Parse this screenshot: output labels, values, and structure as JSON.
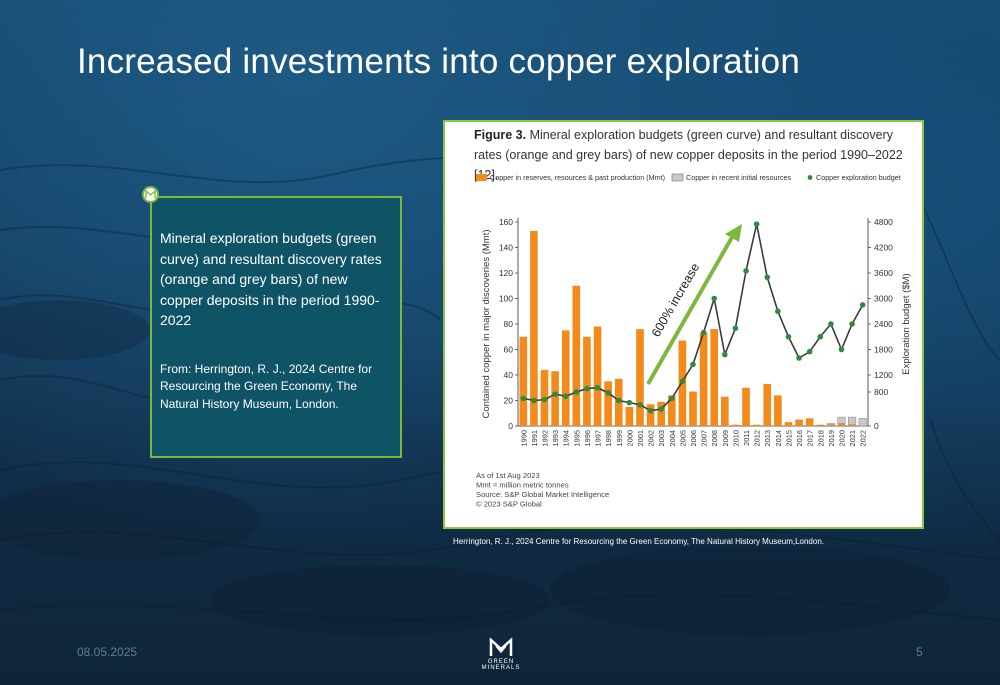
{
  "slide": {
    "title": "Increased investments into copper exploration",
    "date": "08.05.2025",
    "page_number": "5"
  },
  "info_box": {
    "description": "Mineral exploration budgets (green curve) and resultant discovery rates (orange and grey bars) of new copper deposits in the period 1990-2022",
    "source": "From: Herrington, R. J., 2024 Centre for Resourcing the Green Economy, The Natural History Museum, London."
  },
  "figure": {
    "label": "Figure 3.",
    "title_text": "Mineral exploration budgets (green curve) and resultant discovery rates (orange and grey bars) of new copper deposits in the period 1990–2022 [12].",
    "caption": "Herrington, R. J., 2024 Centre for Resourcing the Green Economy, The Natural History Museum,London.",
    "notes": [
      "As of 1st Aug 2023",
      "Mmt = million metric tonnes",
      "Source: S&P Global Market Intelligence",
      "© 2023 S&P Global"
    ]
  },
  "logo": {
    "text": "GREEN MINERALS"
  },
  "colors": {
    "accent_green": "#7bb93c",
    "orange_bar": "#f28a1c",
    "grey_bar": "#c8c8c8",
    "budget_line": "#3b3b3b",
    "budget_marker": "#2e8b3e",
    "info_bg": "#0e5366"
  },
  "chart_data": {
    "type": "bar",
    "categories": [
      "1990",
      "1991",
      "1992",
      "1993",
      "1994",
      "1995",
      "1996",
      "1997",
      "1998",
      "1999",
      "2000",
      "2001",
      "2002",
      "2003",
      "2004",
      "2005",
      "2006",
      "2007",
      "2008",
      "2009",
      "2010",
      "2011",
      "2012",
      "2013",
      "2014",
      "2015",
      "2016",
      "2017",
      "2018",
      "2019",
      "2020",
      "2021",
      "2022"
    ],
    "series": [
      {
        "name": "Copper in reserves, resources & past production (Mmt)",
        "values": [
          70,
          153,
          44,
          43,
          75,
          110,
          70,
          78,
          35,
          37,
          15,
          76,
          17,
          19,
          24,
          67,
          27,
          73,
          76,
          23,
          1,
          30,
          1,
          33,
          24,
          3,
          5,
          6,
          1,
          1,
          2,
          1,
          0
        ]
      },
      {
        "name": "Copper in recent initial resources",
        "values": [
          0,
          0,
          0,
          0,
          0,
          0,
          0,
          0,
          0,
          0,
          0,
          0,
          0,
          0,
          0,
          0,
          0,
          0,
          0,
          0,
          0,
          0,
          0,
          0,
          0,
          0,
          0,
          0,
          0,
          1,
          5,
          6,
          6
        ]
      },
      {
        "name": "Copper exploration budget",
        "axis": "right",
        "values": [
          650,
          600,
          620,
          750,
          700,
          800,
          880,
          900,
          780,
          600,
          550,
          500,
          360,
          400,
          650,
          1050,
          1450,
          2200,
          3000,
          1680,
          2300,
          3650,
          4750,
          3500,
          2700,
          2100,
          1600,
          1750,
          2100,
          2400,
          1800,
          2400,
          2850
        ]
      }
    ],
    "ylabel": "Contained copper in major discoveries (Mmt)",
    "ylabel_right": "Exploration budget ($M)",
    "ylim": [
      0,
      160
    ],
    "ylim_right": [
      0,
      4800
    ],
    "yticks": [
      0,
      20,
      40,
      60,
      80,
      100,
      120,
      140,
      160
    ],
    "yticks_right": [
      0,
      800,
      1200,
      1800,
      2400,
      3000,
      3600,
      4200,
      4800
    ],
    "annotation": "600% increase",
    "grid": false,
    "legend_position": "top"
  }
}
